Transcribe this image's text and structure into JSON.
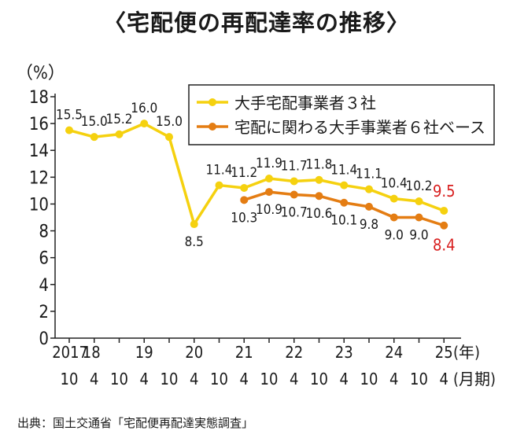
{
  "title": "〈宅配便の再配達率の推移〉",
  "source": "出典：国土交通省「宅配便再配達実態調査」",
  "colors": {
    "series1": "#F5D10F",
    "series2": "#E47D13",
    "highlight": "#D81E1E"
  },
  "chart_data": {
    "type": "line",
    "y_unit_label": "（%）",
    "ylim": [
      0,
      18
    ],
    "y_ticks": [
      0,
      2,
      4,
      6,
      8,
      10,
      12,
      14,
      16,
      18
    ],
    "grid": false,
    "legend_position": "top-right",
    "x": [
      "2017/10",
      "2018/4",
      "2018/10",
      "2019/4",
      "2019/10",
      "2020/4",
      "2020/10",
      "2021/4",
      "2021/10",
      "2022/4",
      "2022/10",
      "2023/4",
      "2023/10",
      "2024/4",
      "2024/10",
      "2025/4"
    ],
    "x_axis_years": [
      {
        "label": "2017",
        "at": "2017/10"
      },
      {
        "label": "18",
        "at": "2018/4"
      },
      {
        "label": "19",
        "at": "2019/4"
      },
      {
        "label": "20",
        "at": "2020/4"
      },
      {
        "label": "21",
        "at": "2021/4"
      },
      {
        "label": "22",
        "at": "2022/4"
      },
      {
        "label": "23",
        "at": "2023/4"
      },
      {
        "label": "24",
        "at": "2024/4"
      },
      {
        "label": "25",
        "at": "2025/4"
      }
    ],
    "x_axis_months": [
      "10",
      "4",
      "10",
      "4",
      "10",
      "4",
      "10",
      "4",
      "10",
      "4",
      "10",
      "4",
      "10",
      "4",
      "10",
      "4"
    ],
    "year_unit_label": "(年)",
    "month_unit_label": "(月期)",
    "series": [
      {
        "name": "大手宅配事業者３社",
        "color": "#F5D10F",
        "values": [
          15.5,
          15.0,
          15.2,
          16.0,
          15.0,
          8.5,
          11.4,
          11.2,
          11.9,
          11.7,
          11.8,
          11.4,
          11.1,
          10.4,
          10.2,
          9.5
        ],
        "labels": [
          "15.5",
          "15.0",
          "15.2",
          "16.0",
          "15.0",
          "8.5",
          "11.4",
          "11.2",
          "11.9",
          "11.7",
          "11.8",
          "11.4",
          "11.1",
          "10.4",
          "10.2",
          "9.5"
        ]
      },
      {
        "name": "宅配に関わる大手事業者６社ベース",
        "color": "#E47D13",
        "values": [
          null,
          null,
          null,
          null,
          null,
          null,
          null,
          10.3,
          10.9,
          10.7,
          10.6,
          10.1,
          9.8,
          9.0,
          9.0,
          8.4
        ],
        "labels": [
          null,
          null,
          null,
          null,
          null,
          null,
          null,
          "10.3",
          "10.9",
          "10.7",
          "10.6",
          "10.1",
          "9.8",
          "9.0",
          "9.0",
          "8.4"
        ]
      }
    ]
  }
}
